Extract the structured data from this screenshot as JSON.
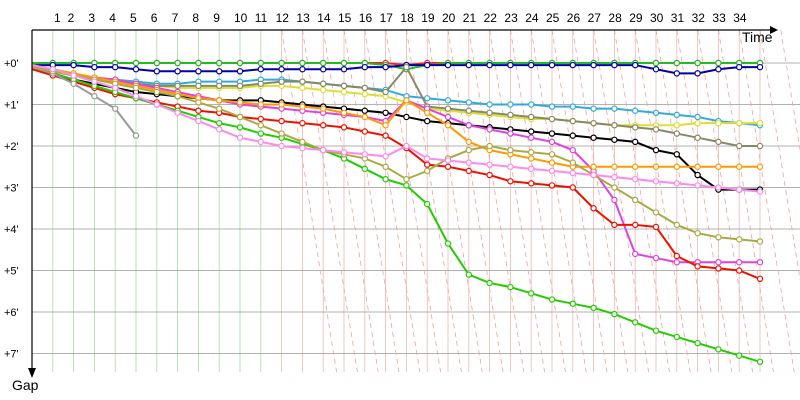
{
  "chart_data": {
    "type": "line",
    "xlabel": "Time",
    "ylabel": "Gap",
    "x_ticks": [
      "1",
      "2",
      "3",
      "4",
      "5",
      "6",
      "7",
      "8",
      "9",
      "10",
      "11",
      "12",
      "13",
      "14",
      "15",
      "16",
      "17",
      "18",
      "19",
      "20",
      "21",
      "22",
      "23",
      "24",
      "25",
      "26",
      "27",
      "28",
      "29",
      "30",
      "31",
      "32",
      "33",
      "34"
    ],
    "y_ticks": [
      "+0'",
      "+1'",
      "+2'",
      "+3'",
      "+4'",
      "+5'",
      "+6'",
      "+7'"
    ],
    "xlim": [
      0,
      35
    ],
    "ylim": [
      0,
      7.3
    ],
    "grid": true,
    "series": [
      {
        "color": "#ff2020",
        "x": [
          0,
          1,
          2,
          3,
          4,
          5,
          6,
          7,
          8,
          9,
          10,
          11,
          12,
          13,
          14,
          15,
          16,
          17,
          18,
          19,
          20,
          21,
          22,
          23,
          24,
          25,
          26,
          27,
          28,
          29,
          30,
          31,
          32,
          33,
          34,
          35
        ],
        "values": [
          0,
          0,
          0,
          0,
          0,
          0,
          0,
          0,
          0,
          0,
          0,
          0,
          0,
          0,
          0,
          0,
          0,
          0,
          0.05,
          0,
          0,
          0,
          0,
          0,
          0,
          0,
          0,
          0,
          0,
          0,
          0,
          0,
          0,
          0,
          0,
          0
        ]
      },
      {
        "color": "#22bb22",
        "x": [
          0,
          1,
          2,
          3,
          4,
          5,
          6,
          7,
          8,
          9,
          10,
          11,
          12,
          13,
          14,
          15,
          16,
          17,
          18,
          19,
          20,
          21,
          22,
          23,
          24,
          25,
          26,
          27,
          28,
          29,
          30,
          31,
          32,
          33,
          34,
          35
        ],
        "values": [
          0,
          0,
          0,
          0,
          0,
          0,
          0,
          0,
          0,
          0,
          0,
          0,
          0,
          0,
          0,
          0,
          0,
          0.05,
          0.15,
          0.05,
          0,
          0,
          0,
          0,
          0,
          0,
          0,
          0,
          0,
          0,
          0,
          0,
          0,
          0,
          0,
          0
        ]
      },
      {
        "color": "#0000aa",
        "x": [
          0,
          1,
          2,
          3,
          4,
          5,
          6,
          7,
          8,
          9,
          10,
          11,
          12,
          13,
          14,
          15,
          16,
          17,
          18,
          19,
          20,
          21,
          22,
          23,
          24,
          25,
          26,
          27,
          28,
          29,
          30,
          31,
          32,
          33,
          34,
          35
        ],
        "values": [
          0.05,
          0.05,
          0.05,
          0.1,
          0.1,
          0.15,
          0.2,
          0.2,
          0.2,
          0.2,
          0.2,
          0.15,
          0.15,
          0.15,
          0.15,
          0.15,
          0.1,
          0.1,
          0.05,
          0.05,
          0.05,
          0.05,
          0.05,
          0.05,
          0.05,
          0.05,
          0.05,
          0.05,
          0.05,
          0.05,
          0.15,
          0.25,
          0.25,
          0.15,
          0.1,
          0.1
        ]
      },
      {
        "color": "#33aadd",
        "x": [
          0,
          1,
          2,
          3,
          4,
          5,
          6,
          7,
          8,
          9,
          10,
          11,
          12,
          13,
          14,
          15,
          16,
          17,
          18,
          19,
          20,
          21,
          22,
          23,
          24,
          25,
          26,
          27,
          28,
          29,
          30,
          31,
          32,
          33,
          34,
          35
        ],
        "values": [
          0.1,
          0.2,
          0.3,
          0.35,
          0.4,
          0.45,
          0.5,
          0.5,
          0.45,
          0.45,
          0.45,
          0.4,
          0.4,
          0.45,
          0.5,
          0.55,
          0.6,
          0.65,
          0.8,
          0.85,
          0.9,
          0.95,
          1.0,
          1.0,
          1.0,
          1.05,
          1.05,
          1.1,
          1.1,
          1.15,
          1.2,
          1.25,
          1.3,
          1.4,
          1.45,
          1.5
        ]
      },
      {
        "color": "#dddd33",
        "x": [
          0,
          1,
          2,
          3,
          4,
          5,
          6,
          7,
          8,
          9,
          10,
          11,
          12,
          13,
          14,
          15,
          16,
          17,
          18,
          19,
          20,
          21,
          22,
          23,
          24,
          25,
          26,
          27,
          28,
          29,
          30,
          31,
          32,
          33,
          34,
          35
        ],
        "values": [
          0.1,
          0.2,
          0.3,
          0.4,
          0.45,
          0.5,
          0.55,
          0.6,
          0.6,
          0.6,
          0.6,
          0.55,
          0.55,
          0.6,
          0.65,
          0.7,
          0.75,
          0.8,
          0.95,
          1.1,
          1.15,
          1.2,
          1.25,
          1.3,
          1.35,
          1.35,
          1.4,
          1.45,
          1.5,
          1.5,
          1.5,
          1.5,
          1.45,
          1.45,
          1.45,
          1.45
        ]
      },
      {
        "color": "#888866",
        "x": [
          0,
          1,
          2,
          3,
          4,
          5,
          6,
          7,
          8,
          9,
          10,
          11,
          12,
          13,
          14,
          15,
          16,
          17,
          18,
          19,
          20,
          21,
          22,
          23,
          24,
          25,
          26,
          27,
          28,
          29,
          30,
          31,
          32,
          33,
          34,
          35
        ],
        "values": [
          0.1,
          0.2,
          0.3,
          0.4,
          0.45,
          0.5,
          0.55,
          0.55,
          0.55,
          0.55,
          0.55,
          0.5,
          0.45,
          0.45,
          0.5,
          0.55,
          0.6,
          0.7,
          0.1,
          1.05,
          1.1,
          1.15,
          1.2,
          1.25,
          1.3,
          1.35,
          1.4,
          1.45,
          1.5,
          1.55,
          1.6,
          1.7,
          1.8,
          1.9,
          2.0,
          2.0
        ]
      },
      {
        "color": "#000000",
        "x": [
          0,
          1,
          2,
          3,
          4,
          5,
          6,
          7,
          8,
          9,
          10,
          11,
          12,
          13,
          14,
          15,
          16,
          17,
          18,
          19,
          20,
          21,
          22,
          23,
          24,
          25,
          26,
          27,
          28,
          29,
          30,
          31,
          32,
          33,
          34,
          35
        ],
        "values": [
          0.1,
          0.25,
          0.4,
          0.5,
          0.6,
          0.7,
          0.75,
          0.8,
          0.85,
          0.9,
          0.9,
          0.9,
          0.95,
          1.0,
          1.05,
          1.1,
          1.15,
          1.2,
          1.3,
          1.4,
          1.45,
          1.5,
          1.55,
          1.6,
          1.65,
          1.7,
          1.75,
          1.8,
          1.85,
          1.9,
          2.1,
          2.2,
          2.7,
          3.05,
          3.05,
          3.05
        ]
      },
      {
        "color": "#dd44dd",
        "x": [
          0,
          1,
          2,
          3,
          4,
          5,
          6,
          7,
          8,
          9,
          10,
          11,
          12,
          13,
          14,
          15,
          16,
          17,
          18,
          19,
          20,
          21,
          22,
          23,
          24,
          25,
          26,
          27,
          28,
          29,
          30,
          31,
          32,
          33,
          34,
          35
        ],
        "values": [
          0.1,
          0.2,
          0.3,
          0.35,
          0.4,
          0.5,
          0.6,
          0.7,
          0.8,
          0.9,
          1.0,
          1.05,
          1.1,
          1.15,
          1.2,
          1.25,
          1.3,
          1.4,
          0.9,
          1.1,
          1.3,
          1.5,
          1.6,
          1.7,
          1.8,
          1.9,
          2.1,
          2.6,
          3.3,
          4.6,
          4.7,
          4.8,
          4.8,
          4.8,
          4.8,
          4.8
        ]
      },
      {
        "color": "#ff9900",
        "x": [
          0,
          1,
          2,
          3,
          4,
          5,
          6,
          7,
          8,
          9,
          10,
          11,
          12,
          13,
          14,
          15,
          16,
          17,
          18,
          19,
          20,
          21,
          22,
          23,
          24,
          25,
          26,
          27,
          28,
          29,
          30,
          31,
          32,
          33,
          34,
          35
        ],
        "values": [
          0.05,
          0.15,
          0.25,
          0.35,
          0.45,
          0.55,
          0.65,
          0.75,
          0.85,
          0.9,
          0.95,
          1.0,
          1.0,
          1.05,
          1.1,
          1.2,
          1.3,
          1.5,
          0.9,
          1.2,
          1.5,
          1.9,
          2.1,
          2.2,
          2.3,
          2.4,
          2.5,
          2.5,
          2.5,
          2.5,
          2.5,
          2.5,
          2.5,
          2.5,
          2.5,
          2.5
        ]
      },
      {
        "color": "#ee1100",
        "x": [
          0,
          1,
          2,
          3,
          4,
          5,
          6,
          7,
          8,
          9,
          10,
          11,
          12,
          13,
          14,
          15,
          16,
          17,
          18,
          19,
          20,
          21,
          22,
          23,
          24,
          25,
          26,
          27,
          28,
          29,
          30,
          31,
          32,
          33,
          34,
          35
        ],
        "values": [
          0.15,
          0.3,
          0.45,
          0.6,
          0.75,
          0.85,
          0.95,
          1.05,
          1.15,
          1.2,
          1.3,
          1.35,
          1.4,
          1.45,
          1.5,
          1.55,
          1.65,
          1.75,
          2.05,
          2.45,
          2.5,
          2.6,
          2.7,
          2.85,
          2.9,
          2.95,
          3.0,
          3.5,
          3.9,
          3.9,
          3.95,
          4.65,
          4.9,
          4.95,
          5.0,
          5.2
        ]
      },
      {
        "color": "#22cc00",
        "x": [
          0,
          1,
          2,
          3,
          4,
          5,
          6,
          7,
          8,
          9,
          10,
          11,
          12,
          13,
          14,
          15,
          16,
          17,
          18,
          19,
          20,
          21,
          22,
          23,
          24,
          25,
          26,
          27,
          28,
          29,
          30,
          31,
          32,
          33,
          34,
          35
        ],
        "values": [
          0.1,
          0.25,
          0.4,
          0.55,
          0.7,
          0.85,
          1.0,
          1.15,
          1.3,
          1.45,
          1.55,
          1.7,
          1.8,
          1.95,
          2.1,
          2.3,
          2.55,
          2.8,
          2.95,
          3.4,
          4.35,
          5.1,
          5.3,
          5.4,
          5.55,
          5.7,
          5.8,
          5.9,
          6.05,
          6.25,
          6.45,
          6.6,
          6.75,
          6.9,
          7.05,
          7.2
        ]
      },
      {
        "color": "#999999",
        "x": [
          0,
          1,
          2,
          3,
          4,
          5
        ],
        "values": [
          0.1,
          0.25,
          0.5,
          0.8,
          1.1,
          1.75
        ]
      },
      {
        "color": "#aaaa44",
        "x": [
          0,
          1,
          2,
          3,
          4,
          5,
          6,
          7,
          8,
          9,
          10,
          11,
          12,
          13,
          14,
          15,
          16,
          17,
          18,
          19,
          20,
          21,
          22,
          23,
          24,
          25,
          26,
          27,
          28,
          29,
          30,
          31,
          32,
          33,
          34,
          35
        ],
        "values": [
          0.1,
          0.2,
          0.3,
          0.4,
          0.5,
          0.6,
          0.7,
          0.8,
          0.95,
          1.1,
          1.3,
          1.5,
          1.7,
          1.9,
          2.1,
          2.2,
          2.3,
          2.5,
          2.8,
          2.6,
          2.3,
          2.1,
          2.0,
          2.1,
          2.15,
          2.2,
          2.4,
          2.7,
          3.0,
          3.3,
          3.6,
          3.9,
          4.1,
          4.2,
          4.25,
          4.3
        ]
      },
      {
        "color": "#ff88ee",
        "x": [
          0,
          1,
          2,
          3,
          4,
          5,
          6,
          7,
          8,
          9,
          10,
          11,
          12,
          13,
          14,
          15,
          16,
          17,
          18,
          19,
          20,
          21,
          22,
          23,
          24,
          25,
          26,
          27,
          28,
          29,
          30,
          31,
          32,
          33,
          34,
          35
        ],
        "values": [
          0.05,
          0.15,
          0.3,
          0.45,
          0.6,
          0.8,
          1.0,
          1.2,
          1.4,
          1.6,
          1.8,
          1.9,
          2.0,
          2.05,
          2.1,
          2.15,
          2.2,
          2.25,
          2.0,
          2.3,
          2.35,
          2.4,
          2.45,
          2.5,
          2.55,
          2.6,
          2.65,
          2.7,
          2.75,
          2.8,
          2.85,
          2.9,
          2.95,
          3.0,
          3.05,
          3.1
        ]
      }
    ]
  }
}
